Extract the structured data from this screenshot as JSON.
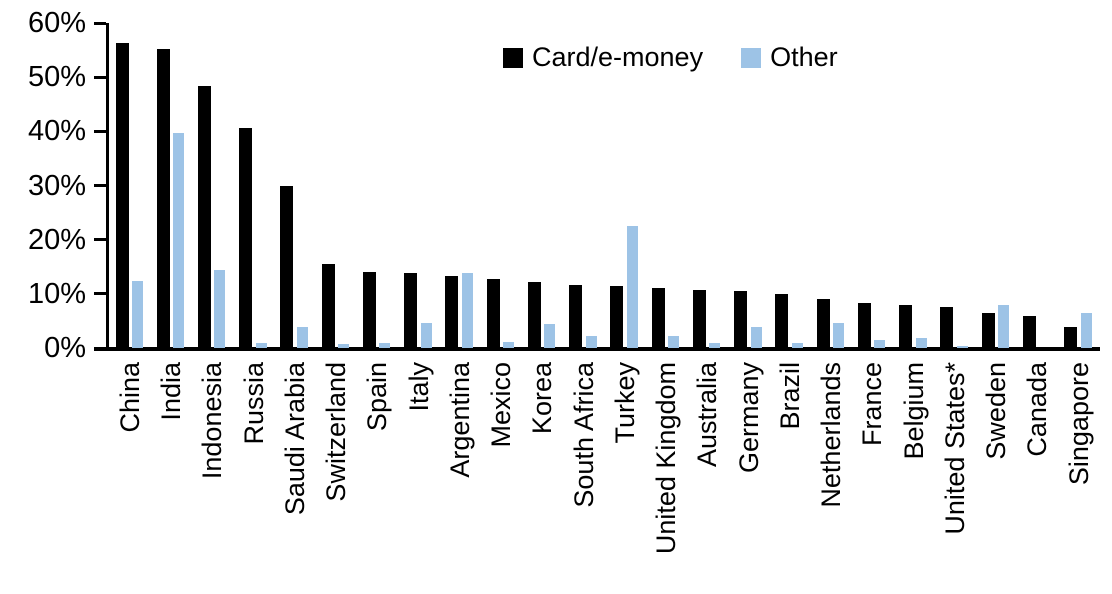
{
  "legend": {
    "series1_label": "Card/e-money",
    "series2_label": "Other"
  },
  "colors": {
    "card": "#000000",
    "other": "#9DC3E6",
    "axis": "#000000"
  },
  "chart_data": {
    "type": "bar",
    "title": "",
    "xlabel": "",
    "ylabel": "",
    "ylim": [
      0,
      60
    ],
    "ytick_values": [
      0,
      10,
      20,
      30,
      40,
      50,
      60
    ],
    "ytick_labels": [
      "0%",
      "10%",
      "20%",
      "30%",
      "40%",
      "50%",
      "60%"
    ],
    "grid": false,
    "legend_position": "top",
    "categories": [
      "China",
      "India",
      "Indonesia",
      "Russia",
      "Saudi Arabia",
      "Switzerland",
      "Spain",
      "Italy",
      "Argentina",
      "Mexico",
      "Korea",
      "South Africa",
      "Turkey",
      "United Kingdom",
      "Australia",
      "Germany",
      "Brazil",
      "Netherlands",
      "France",
      "Belgium",
      "United States*",
      "Sweden",
      "Canada",
      "Singapore"
    ],
    "series": [
      {
        "name": "Card/e-money",
        "color": "#000000",
        "values": [
          56.4,
          55.2,
          48.4,
          40.6,
          29.9,
          15.5,
          14.0,
          13.9,
          13.3,
          12.8,
          12.2,
          11.6,
          11.5,
          11.0,
          10.7,
          10.5,
          9.9,
          9.0,
          8.4,
          8.0,
          7.6,
          6.5,
          5.9,
          3.8
        ]
      },
      {
        "name": "Other",
        "color": "#9DC3E6",
        "values": [
          12.3,
          39.7,
          14.4,
          1.0,
          3.8,
          0.7,
          1.0,
          4.6,
          13.9,
          1.2,
          4.4,
          2.3,
          22.6,
          2.3,
          0.9,
          3.9,
          1.0,
          4.7,
          1.4,
          1.8,
          0.3,
          8.0,
          0,
          6.5
        ]
      }
    ]
  }
}
